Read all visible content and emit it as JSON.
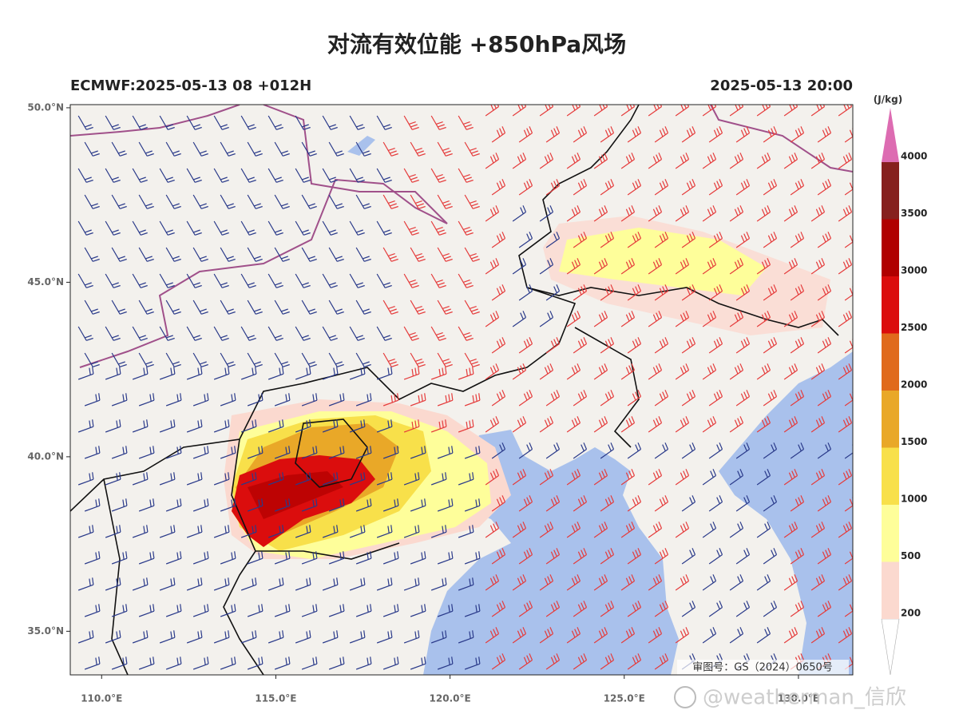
{
  "title": "对流有效位能 +850hPa风场",
  "run_label": "ECMWF:2025-05-13 08 +012H",
  "valid_time": "2025-05-13 20:00",
  "map": {
    "lon_range": [
      109.1,
      131.56
    ],
    "lat_range": [
      33.75,
      50.09
    ],
    "lat_ticks": [
      {
        "value": 50,
        "label": "50.0°N"
      },
      {
        "value": 45,
        "label": "45.0°N"
      },
      {
        "value": 40,
        "label": "40.0°N"
      },
      {
        "value": 35,
        "label": "35.0°N"
      }
    ],
    "lon_ticks": [
      {
        "value": 110,
        "label": "110.0°E"
      },
      {
        "value": 115,
        "label": "115.0°E"
      },
      {
        "value": 120,
        "label": "120.0°E"
      },
      {
        "value": 125,
        "label": "125.0°E"
      },
      {
        "value": 130,
        "label": "130.0°E"
      }
    ]
  },
  "colorbar": {
    "unit": "(J/kg)",
    "levels": [
      200,
      500,
      1000,
      1500,
      2000,
      2500,
      3000,
      3500,
      4000
    ],
    "colors": [
      "#ffffff",
      "#fbd9cf",
      "#fefe9a",
      "#f8e04a",
      "#e9a828",
      "#e06a1c",
      "#db0d0d",
      "#b00000",
      "#86201e",
      "#dd6cb2"
    ]
  },
  "review_number": "审图号：GS（2024）0650号",
  "watermark": "@weatherman_信欣"
}
